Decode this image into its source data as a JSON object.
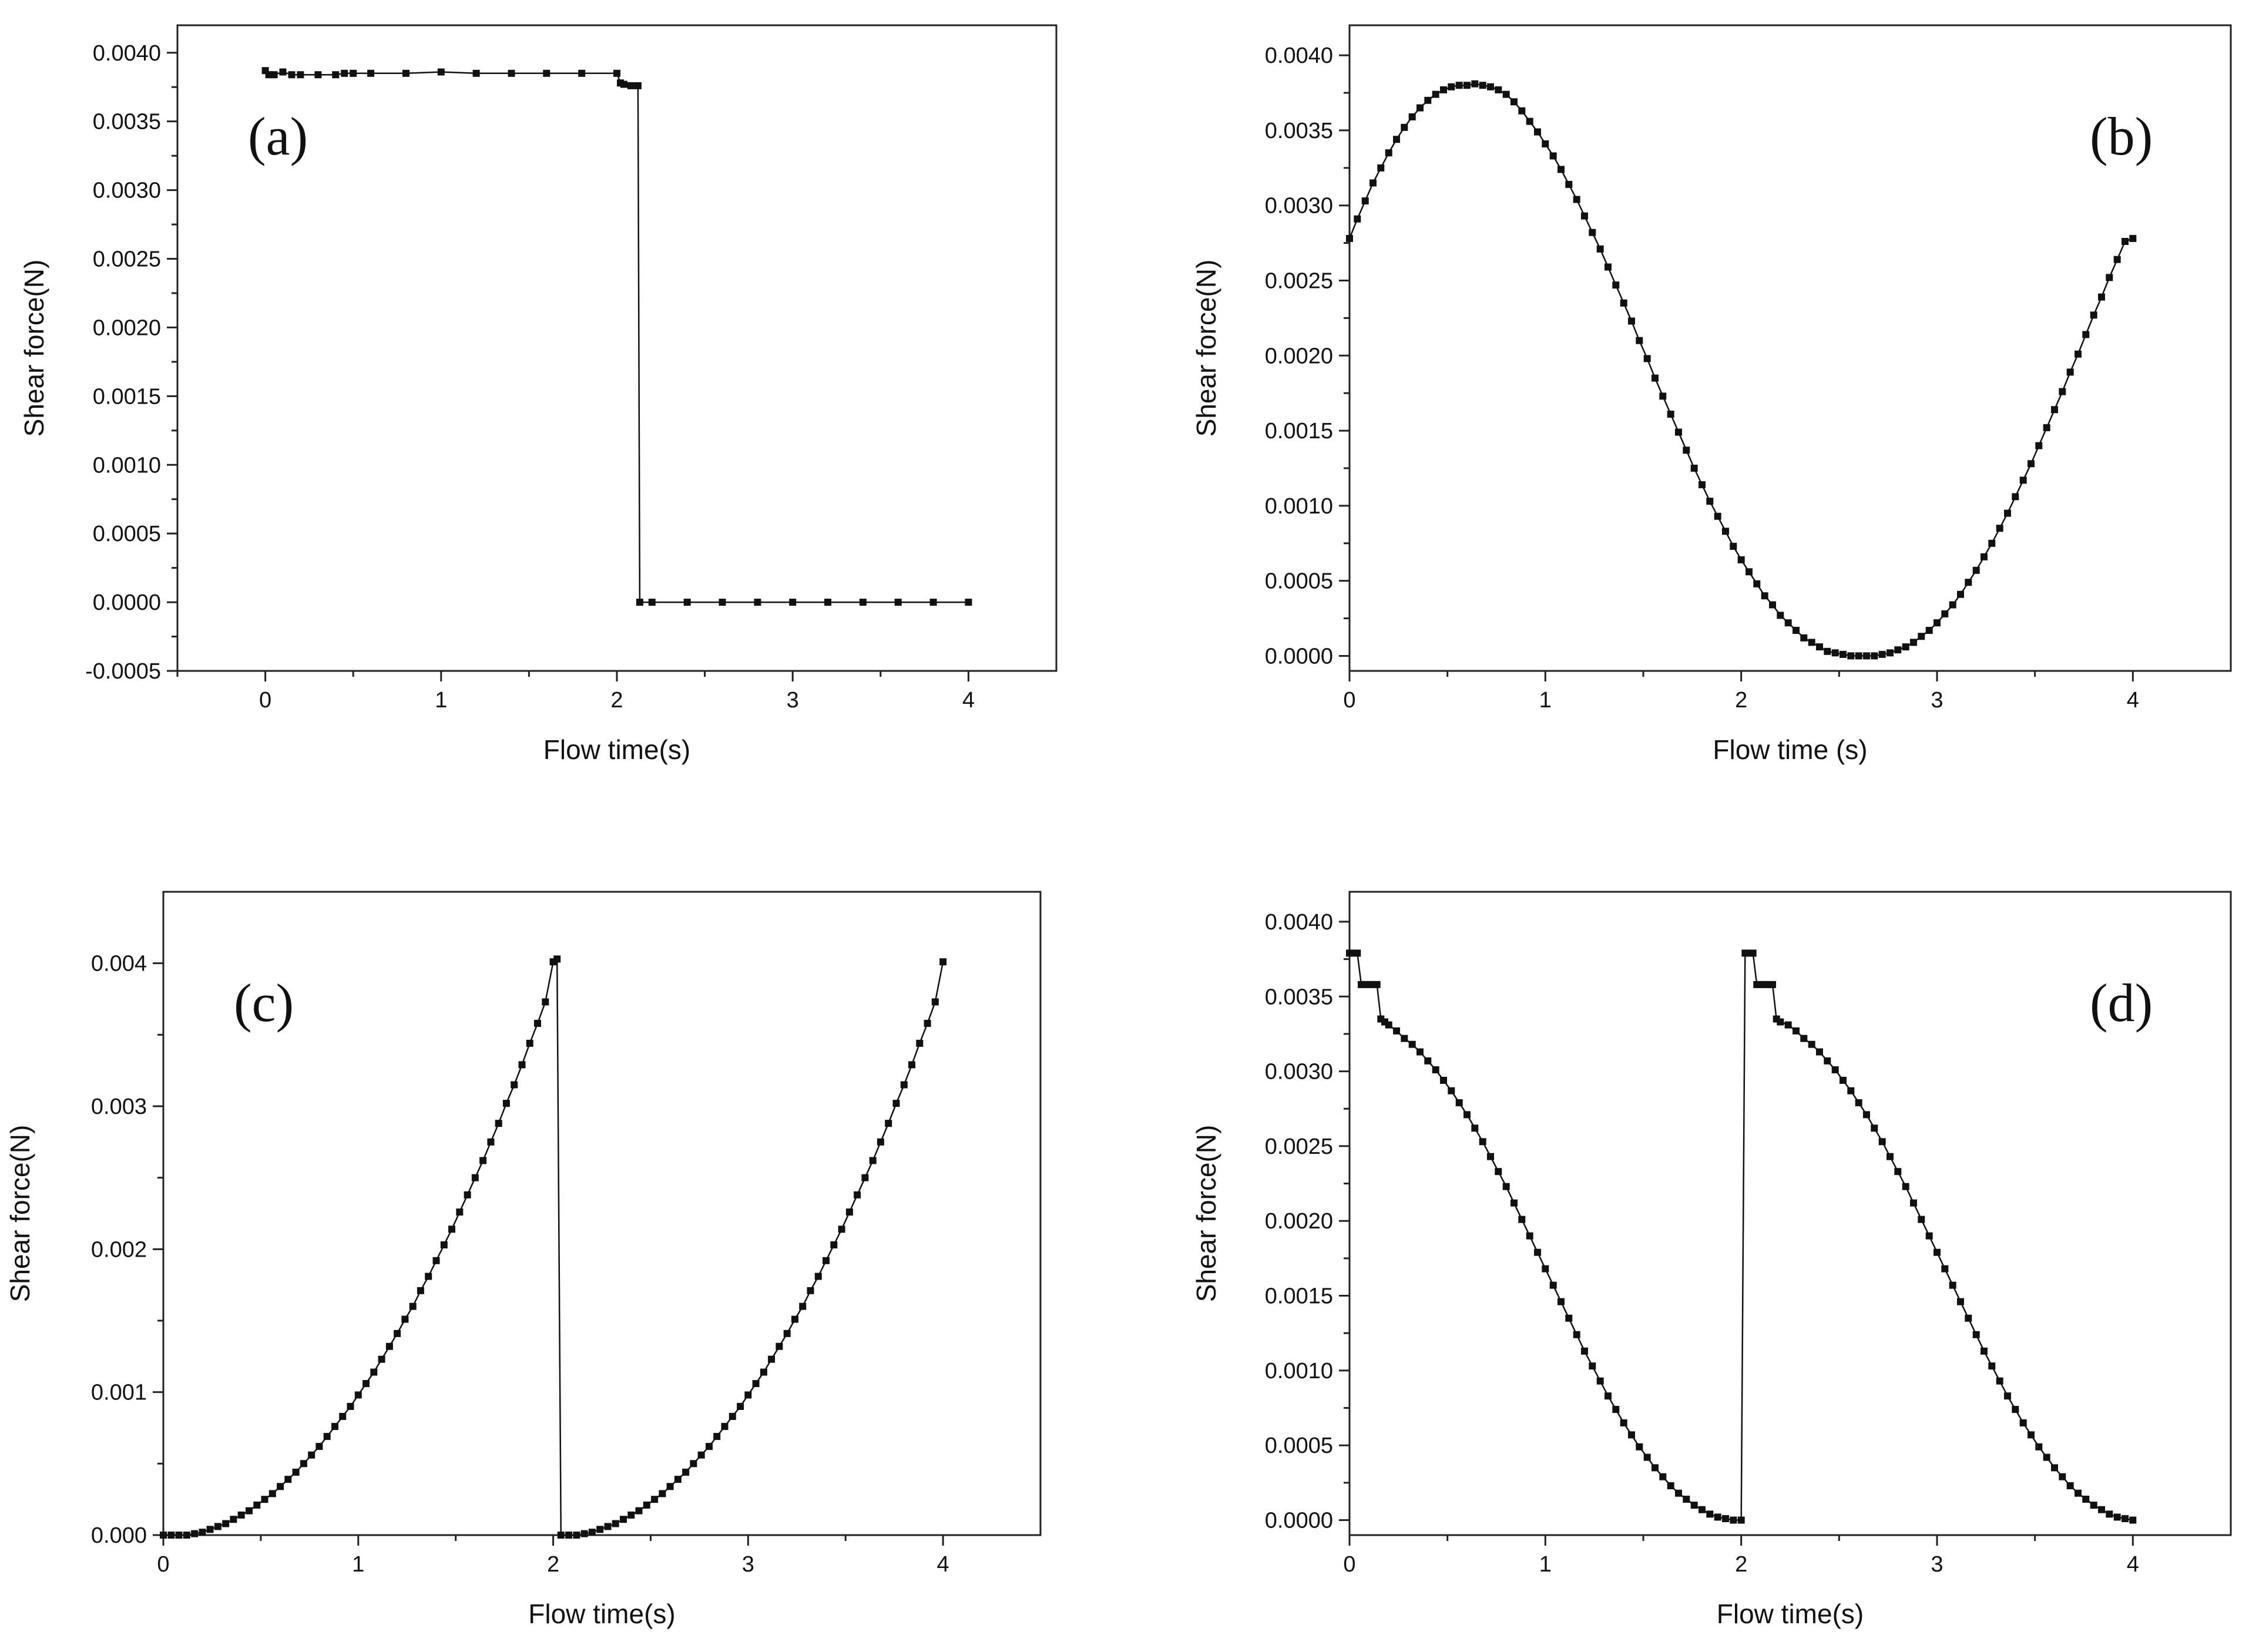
{
  "chart_data": [
    {
      "panel_label": "(a)",
      "type": "line",
      "xlabel": "Flow time(s)",
      "ylabel": "Shear force(N)",
      "xlim": [
        -0.5,
        4.5
      ],
      "ylim": [
        -0.0005,
        0.0042
      ],
      "xticks": [
        0,
        1,
        2,
        3,
        4
      ],
      "xtick_labels": [
        "0",
        "1",
        "2",
        "3",
        "4"
      ],
      "yticks": [
        -0.0005,
        0.0,
        0.0005,
        0.001,
        0.0015,
        0.002,
        0.0025,
        0.003,
        0.0035,
        0.004
      ],
      "ytick_labels": [
        "-0.0005",
        "0.0000",
        "0.0005",
        "0.0010",
        "0.0015",
        "0.0020",
        "0.0025",
        "0.0030",
        "0.0035",
        "0.0040"
      ],
      "series": [
        {
          "name": "Shear force",
          "x": [
            0.0,
            0.02,
            0.05,
            0.1,
            0.15,
            0.2,
            0.3,
            0.4,
            0.45,
            0.5,
            0.6,
            0.8,
            1.0,
            1.2,
            1.4,
            1.6,
            1.8,
            2.0,
            2.02,
            2.04,
            2.08,
            2.12,
            2.13,
            2.2,
            2.4,
            2.6,
            2.8,
            3.0,
            3.2,
            3.4,
            3.6,
            3.8,
            4.0
          ],
          "y": [
            0.00387,
            0.00384,
            0.00384,
            0.00386,
            0.00384,
            0.00384,
            0.00384,
            0.00384,
            0.00385,
            0.00385,
            0.00385,
            0.00385,
            0.00386,
            0.00385,
            0.00385,
            0.00385,
            0.00385,
            0.00385,
            0.00378,
            0.00377,
            0.00376,
            0.00376,
            0.0,
            0.0,
            0.0,
            0.0,
            0.0,
            0.0,
            0.0,
            0.0,
            0.0,
            0.0,
            0.0
          ]
        }
      ]
    },
    {
      "panel_label": "(b)",
      "type": "line",
      "xlabel": "Flow time (s)",
      "ylabel": "Shear force(N)",
      "xlim": [
        0,
        4.5
      ],
      "ylim": [
        -0.0001,
        0.0042
      ],
      "xticks": [
        0,
        1,
        2,
        3,
        4
      ],
      "xtick_labels": [
        "0",
        "1",
        "2",
        "3",
        "4"
      ],
      "yticks": [
        0.0,
        0.0005,
        0.001,
        0.0015,
        0.002,
        0.0025,
        0.003,
        0.0035,
        0.004
      ],
      "ytick_labels": [
        "0.0000",
        "0.0005",
        "0.0010",
        "0.0015",
        "0.0020",
        "0.0025",
        "0.0030",
        "0.0035",
        "0.0040"
      ],
      "series": [
        {
          "name": "Shear force",
          "x": [
            0.0,
            0.04,
            0.08,
            0.12,
            0.16,
            0.2,
            0.24,
            0.28,
            0.32,
            0.36,
            0.4,
            0.44,
            0.48,
            0.52,
            0.56,
            0.6,
            0.64,
            0.68,
            0.72,
            0.76,
            0.8,
            0.84,
            0.88,
            0.92,
            0.96,
            1.0,
            1.04,
            1.08,
            1.12,
            1.16,
            1.2,
            1.24,
            1.28,
            1.32,
            1.36,
            1.4,
            1.44,
            1.48,
            1.52,
            1.56,
            1.6,
            1.64,
            1.68,
            1.72,
            1.76,
            1.8,
            1.84,
            1.88,
            1.92,
            1.96,
            2.0,
            2.04,
            2.08,
            2.12,
            2.16,
            2.2,
            2.24,
            2.28,
            2.32,
            2.36,
            2.4,
            2.44,
            2.48,
            2.52,
            2.56,
            2.6,
            2.64,
            2.68,
            2.72,
            2.76,
            2.8,
            2.84,
            2.88,
            2.92,
            2.96,
            3.0,
            3.04,
            3.08,
            3.12,
            3.16,
            3.2,
            3.24,
            3.28,
            3.32,
            3.36,
            3.4,
            3.44,
            3.48,
            3.52,
            3.56,
            3.6,
            3.64,
            3.68,
            3.72,
            3.76,
            3.8,
            3.84,
            3.88,
            3.92,
            3.96,
            4.0
          ],
          "y": [
            0.00278,
            0.00291,
            0.00303,
            0.00315,
            0.00325,
            0.00335,
            0.00344,
            0.00352,
            0.00359,
            0.00365,
            0.0037,
            0.00374,
            0.00377,
            0.00379,
            0.0038,
            0.0038,
            0.00381,
            0.0038,
            0.00379,
            0.00377,
            0.00374,
            0.00369,
            0.00363,
            0.00356,
            0.00349,
            0.00341,
            0.00333,
            0.00324,
            0.00314,
            0.00304,
            0.00293,
            0.00282,
            0.00271,
            0.00259,
            0.00247,
            0.00235,
            0.00223,
            0.0021,
            0.00198,
            0.00185,
            0.00173,
            0.00161,
            0.00149,
            0.00137,
            0.00125,
            0.00114,
            0.00103,
            0.00093,
            0.00083,
            0.00073,
            0.00064,
            0.00056,
            0.00048,
            0.0004,
            0.00034,
            0.00027,
            0.00022,
            0.00017,
            0.00012,
            9e-05,
            6e-05,
            3e-05,
            2e-05,
            1e-05,
            0.0,
            0.0,
            0.0,
            0.0,
            1e-05,
            2e-05,
            4e-05,
            6e-05,
            9e-05,
            0.00013,
            0.00017,
            0.00022,
            0.00028,
            0.00034,
            0.00041,
            0.00049,
            0.00057,
            0.00066,
            0.00075,
            0.00085,
            0.00095,
            0.00106,
            0.00117,
            0.00128,
            0.0014,
            0.00152,
            0.00164,
            0.00176,
            0.00189,
            0.00201,
            0.00214,
            0.00227,
            0.00239,
            0.00252,
            0.00264,
            0.00276,
            0.00278
          ]
        }
      ]
    },
    {
      "panel_label": "(c)",
      "type": "line",
      "xlabel": "Flow time(s)",
      "ylabel": "Shear force(N)",
      "xlim": [
        0,
        4.5
      ],
      "ylim": [
        0,
        0.0045
      ],
      "xticks": [
        0,
        1,
        2,
        3,
        4
      ],
      "xtick_labels": [
        "0",
        "1",
        "2",
        "3",
        "4"
      ],
      "yticks": [
        0.0,
        0.001,
        0.002,
        0.003,
        0.004
      ],
      "ytick_labels": [
        "0.000",
        "0.001",
        "0.002",
        "0.003",
        "0.004"
      ],
      "series": [
        {
          "name": "Shear force",
          "x": [
            0.0,
            0.04,
            0.08,
            0.12,
            0.16,
            0.2,
            0.24,
            0.28,
            0.32,
            0.36,
            0.4,
            0.44,
            0.48,
            0.52,
            0.56,
            0.6,
            0.64,
            0.68,
            0.72,
            0.76,
            0.8,
            0.84,
            0.88,
            0.92,
            0.96,
            1.0,
            1.04,
            1.08,
            1.12,
            1.16,
            1.2,
            1.24,
            1.28,
            1.32,
            1.36,
            1.4,
            1.44,
            1.48,
            1.52,
            1.56,
            1.6,
            1.64,
            1.68,
            1.72,
            1.76,
            1.8,
            1.84,
            1.88,
            1.92,
            1.96,
            2.0,
            2.02,
            2.04,
            2.08,
            2.12,
            2.16,
            2.2,
            2.24,
            2.28,
            2.32,
            2.36,
            2.4,
            2.44,
            2.48,
            2.52,
            2.56,
            2.6,
            2.64,
            2.68,
            2.72,
            2.76,
            2.8,
            2.84,
            2.88,
            2.92,
            2.96,
            3.0,
            3.04,
            3.08,
            3.12,
            3.16,
            3.2,
            3.24,
            3.28,
            3.32,
            3.36,
            3.4,
            3.44,
            3.48,
            3.52,
            3.56,
            3.6,
            3.64,
            3.68,
            3.72,
            3.76,
            3.8,
            3.84,
            3.88,
            3.92,
            3.96,
            4.0
          ],
          "y": [
            0.0,
            0.0,
            0.0,
            0.0,
            1e-05,
            2e-05,
            4e-05,
            6e-05,
            8e-05,
            0.00011,
            0.00014,
            0.00017,
            0.00021,
            0.00025,
            0.00029,
            0.00034,
            0.00039,
            0.00044,
            0.0005,
            0.00056,
            0.00062,
            0.00069,
            0.00076,
            0.00083,
            0.0009,
            0.00098,
            0.00106,
            0.00114,
            0.00123,
            0.00132,
            0.00141,
            0.00151,
            0.0016,
            0.00171,
            0.00181,
            0.00192,
            0.00203,
            0.00214,
            0.00226,
            0.00238,
            0.0025,
            0.00262,
            0.00275,
            0.00288,
            0.00302,
            0.00315,
            0.00329,
            0.00344,
            0.00358,
            0.00373,
            0.00401,
            0.00403,
            0.0,
            0.0,
            0.0,
            1e-05,
            2e-05,
            4e-05,
            6e-05,
            8e-05,
            0.00011,
            0.00014,
            0.00017,
            0.00021,
            0.00025,
            0.00029,
            0.00034,
            0.00039,
            0.00044,
            0.0005,
            0.00056,
            0.00062,
            0.00069,
            0.00076,
            0.00083,
            0.0009,
            0.00098,
            0.00106,
            0.00114,
            0.00123,
            0.00132,
            0.00141,
            0.00151,
            0.0016,
            0.00171,
            0.00181,
            0.00192,
            0.00203,
            0.00214,
            0.00226,
            0.00238,
            0.0025,
            0.00262,
            0.00275,
            0.00288,
            0.00302,
            0.00315,
            0.00329,
            0.00344,
            0.00358,
            0.00373,
            0.00401
          ]
        }
      ]
    },
    {
      "panel_label": "(d)",
      "type": "line",
      "xlabel": "Flow time(s)",
      "ylabel": "Shear force(N)",
      "xlim": [
        0,
        4.5
      ],
      "ylim": [
        -0.0001,
        0.0042
      ],
      "xticks": [
        0,
        1,
        2,
        3,
        4
      ],
      "xtick_labels": [
        "0",
        "1",
        "2",
        "3",
        "4"
      ],
      "yticks": [
        0.0,
        0.0005,
        0.001,
        0.0015,
        0.002,
        0.0025,
        0.003,
        0.0035,
        0.004
      ],
      "ytick_labels": [
        "0.0000",
        "0.0005",
        "0.0010",
        "0.0015",
        "0.0020",
        "0.0025",
        "0.0030",
        "0.0035",
        "0.0040"
      ],
      "series": [
        {
          "name": "Shear force",
          "x": [
            0.0,
            0.02,
            0.04,
            0.06,
            0.08,
            0.1,
            0.12,
            0.14,
            0.16,
            0.18,
            0.2,
            0.24,
            0.28,
            0.32,
            0.36,
            0.4,
            0.44,
            0.48,
            0.52,
            0.56,
            0.6,
            0.64,
            0.68,
            0.72,
            0.76,
            0.8,
            0.84,
            0.88,
            0.92,
            0.96,
            1.0,
            1.04,
            1.08,
            1.12,
            1.16,
            1.2,
            1.24,
            1.28,
            1.32,
            1.36,
            1.4,
            1.44,
            1.48,
            1.52,
            1.56,
            1.6,
            1.64,
            1.68,
            1.72,
            1.76,
            1.8,
            1.84,
            1.88,
            1.92,
            1.96,
            2.0,
            2.02,
            2.04,
            2.06,
            2.08,
            2.1,
            2.12,
            2.14,
            2.16,
            2.18,
            2.2,
            2.24,
            2.28,
            2.32,
            2.36,
            2.4,
            2.44,
            2.48,
            2.52,
            2.56,
            2.6,
            2.64,
            2.68,
            2.72,
            2.76,
            2.8,
            2.84,
            2.88,
            2.92,
            2.96,
            3.0,
            3.04,
            3.08,
            3.12,
            3.16,
            3.2,
            3.24,
            3.28,
            3.32,
            3.36,
            3.4,
            3.44,
            3.48,
            3.52,
            3.56,
            3.6,
            3.64,
            3.68,
            3.72,
            3.76,
            3.8,
            3.84,
            3.88,
            3.92,
            3.96,
            4.0
          ],
          "y": [
            0.00379,
            0.00379,
            0.00379,
            0.00358,
            0.00358,
            0.00358,
            0.00358,
            0.00358,
            0.00335,
            0.00333,
            0.00331,
            0.00327,
            0.00322,
            0.00318,
            0.00313,
            0.00307,
            0.00301,
            0.00294,
            0.00287,
            0.00279,
            0.00271,
            0.00262,
            0.00253,
            0.00243,
            0.00233,
            0.00223,
            0.00212,
            0.00201,
            0.0019,
            0.00179,
            0.00168,
            0.00157,
            0.00146,
            0.00135,
            0.00124,
            0.00113,
            0.00103,
            0.00093,
            0.00083,
            0.00074,
            0.00065,
            0.00057,
            0.00049,
            0.00042,
            0.00035,
            0.00029,
            0.00023,
            0.00018,
            0.00014,
            0.0001,
            7e-05,
            4e-05,
            2e-05,
            1e-05,
            0.0,
            0.0,
            0.00379,
            0.00379,
            0.00379,
            0.00358,
            0.00358,
            0.00358,
            0.00358,
            0.00358,
            0.00335,
            0.00333,
            0.00331,
            0.00327,
            0.00322,
            0.00318,
            0.00313,
            0.00307,
            0.00301,
            0.00294,
            0.00287,
            0.00279,
            0.00271,
            0.00262,
            0.00253,
            0.00243,
            0.00233,
            0.00223,
            0.00212,
            0.00201,
            0.0019,
            0.00179,
            0.00168,
            0.00157,
            0.00146,
            0.00135,
            0.00124,
            0.00113,
            0.00103,
            0.00093,
            0.00083,
            0.00074,
            0.00065,
            0.00057,
            0.00049,
            0.00042,
            0.00035,
            0.00029,
            0.00023,
            0.00018,
            0.00014,
            0.0001,
            7e-05,
            4e-05,
            2e-05,
            1e-05,
            0.0
          ]
        }
      ]
    }
  ]
}
